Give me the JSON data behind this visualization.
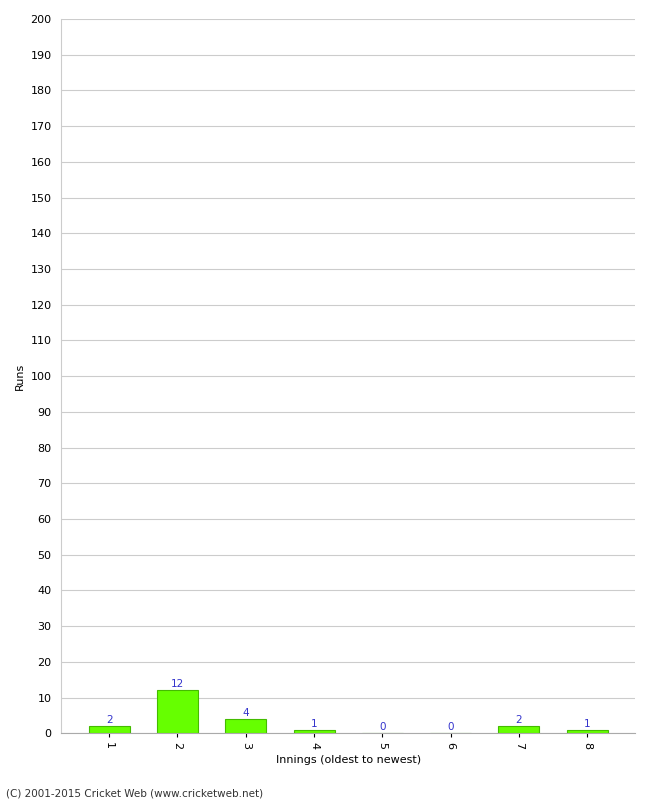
{
  "xlabel": "Innings (oldest to newest)",
  "ylabel": "Runs",
  "categories": [
    "1",
    "2",
    "3",
    "4",
    "5",
    "6",
    "7",
    "8"
  ],
  "values": [
    2,
    12,
    4,
    1,
    0,
    0,
    2,
    1
  ],
  "bar_color": "#66ff00",
  "bar_edge_color": "#44bb00",
  "label_color": "#3333cc",
  "ylim": [
    0,
    200
  ],
  "ytick_interval": 10,
  "footer": "(C) 2001-2015 Cricket Web (www.cricketweb.net)",
  "background_color": "#ffffff",
  "grid_color": "#cccccc",
  "label_fontsize": 7.5,
  "axis_tick_fontsize": 8,
  "axis_label_fontsize": 8,
  "footer_fontsize": 7.5,
  "xtick_rotation": 270
}
